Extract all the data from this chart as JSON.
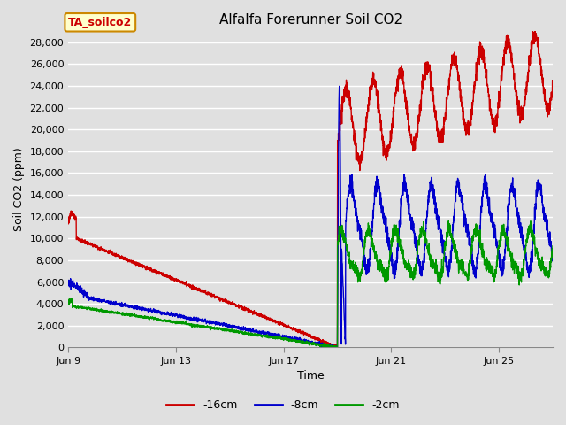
{
  "title": "Alfalfa Forerunner Soil CO2",
  "xlabel": "Time",
  "ylabel": "Soil CO2 (ppm)",
  "ylim": [
    0,
    29000
  ],
  "yticks": [
    0,
    2000,
    4000,
    6000,
    8000,
    10000,
    12000,
    14000,
    16000,
    18000,
    20000,
    22000,
    24000,
    26000,
    28000
  ],
  "xtick_labels": [
    "Jun 9",
    "Jun 13",
    "Jun 17",
    "Jun 21",
    "Jun 25"
  ],
  "xtick_positions": [
    0,
    4,
    8,
    12,
    16
  ],
  "total_days": 18,
  "background_color": "#e0e0e0",
  "plot_bg_color": "#e0e0e0",
  "grid_color": "#ffffff",
  "legend_entries": [
    "-16cm",
    "-8cm",
    "-2cm"
  ],
  "legend_colors": [
    "#cc0000",
    "#0000cc",
    "#009900"
  ],
  "tag_label": "TA_soilco2",
  "tag_bg": "#ffffcc",
  "tag_border": "#cc8800",
  "tag_text_color": "#cc0000",
  "line_colors": {
    "red": "#cc0000",
    "blue": "#0000cc",
    "green": "#009900"
  },
  "figsize": [
    6.4,
    4.8
  ],
  "dpi": 100
}
